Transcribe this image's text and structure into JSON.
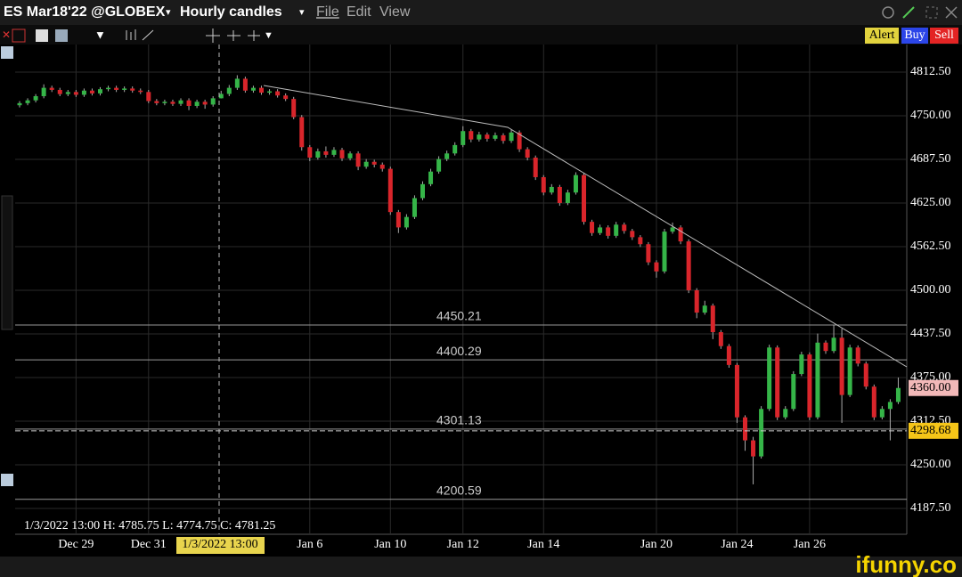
{
  "header": {
    "title": "ES Mar18'22 @GLOBEX",
    "timeframe": "Hourly candles",
    "menu": [
      "File",
      "Edit",
      "View"
    ]
  },
  "buttons": [
    "Alert",
    "Buy",
    "Sell"
  ],
  "crosshair": {
    "readout": "1/3/2022 13:00 H: 4785.75 L: 4774.75 C: 4781.25",
    "time_label": "1/3/2022 13:00"
  },
  "watermark": "ifunny.co",
  "chart_data": {
    "type": "candlestick",
    "up_color": "#35b548",
    "down_color": "#d9252b",
    "grid": true,
    "ylim": [
      4150.5,
      4852
    ],
    "yticks": [
      {
        "value": 4187.5,
        "label": "4187.50"
      },
      {
        "value": 4250,
        "label": "4250.00"
      },
      {
        "value": 4312.5,
        "label": "4312.50"
      },
      {
        "value": 4375,
        "label": "4375.00"
      },
      {
        "value": 4437.5,
        "label": "4437.50"
      },
      {
        "value": 4500,
        "label": "4500.00"
      },
      {
        "value": 4562.5,
        "label": "4562.50"
      },
      {
        "value": 4625,
        "label": "4625.00"
      },
      {
        "value": 4687.5,
        "label": "4687.50"
      },
      {
        "value": 4750,
        "label": "4750.00"
      },
      {
        "value": 4812.5,
        "label": "4812.50"
      }
    ],
    "levels": [
      {
        "value": 4450.21,
        "label": "4450.21"
      },
      {
        "value": 4400.29,
        "label": "4400.29"
      },
      {
        "value": 4301.13,
        "label": "4301.13"
      },
      {
        "value": 4200.59,
        "label": "4200.59"
      }
    ],
    "price_tags": [
      {
        "value": 4360,
        "label": "4360.00",
        "color": "#f2b8b8"
      },
      {
        "value": 4298.68,
        "label": "4298.68",
        "color": "#f5c518"
      }
    ],
    "categories": [
      null,
      null,
      null,
      null,
      null,
      null,
      null,
      "Dec 29",
      null,
      null,
      null,
      null,
      null,
      null,
      null,
      null,
      "Dec 31",
      null,
      null,
      null,
      null,
      null,
      null,
      null,
      null,
      null,
      null,
      null,
      null,
      null,
      null,
      null,
      null,
      null,
      null,
      null,
      "Jan 6",
      null,
      null,
      null,
      null,
      null,
      null,
      null,
      null,
      null,
      "Jan 10",
      null,
      null,
      null,
      null,
      null,
      null,
      null,
      null,
      "Jan 12",
      null,
      null,
      null,
      null,
      null,
      null,
      null,
      null,
      null,
      "Jan 14",
      null,
      null,
      null,
      null,
      null,
      null,
      null,
      null,
      null,
      null,
      null,
      null,
      null,
      "Jan 20",
      null,
      null,
      null,
      null,
      null,
      null,
      null,
      null,
      null,
      "Jan 24",
      null,
      null,
      null,
      null,
      null,
      null,
      null,
      null,
      "Jan 26",
      null,
      null,
      null,
      null,
      null,
      null,
      null,
      null,
      null,
      null,
      null
    ],
    "candles": [
      [
        4765,
        4771,
        4762,
        4768
      ],
      [
        4768,
        4775,
        4765,
        4772
      ],
      [
        4772,
        4781,
        4769,
        4778
      ],
      [
        4778,
        4795,
        4775,
        4790
      ],
      [
        4790,
        4793,
        4784,
        4787
      ],
      [
        4787,
        4790,
        4778,
        4781
      ],
      [
        4781,
        4787,
        4778,
        4784
      ],
      [
        4784,
        4787,
        4777,
        4780
      ],
      [
        4780,
        4789,
        4777,
        4786
      ],
      [
        4786,
        4789,
        4779,
        4782
      ],
      [
        4782,
        4791,
        4779,
        4788
      ],
      [
        4788,
        4793,
        4785,
        4790
      ],
      [
        4790,
        4793,
        4784,
        4787
      ],
      [
        4787,
        4792,
        4784,
        4789
      ],
      [
        4789,
        4792,
        4783,
        4786
      ],
      [
        4786,
        4789,
        4781,
        4784
      ],
      [
        4784,
        4787,
        4768,
        4771
      ],
      [
        4771,
        4774,
        4765,
        4768
      ],
      [
        4768,
        4773,
        4765,
        4770
      ],
      [
        4770,
        4773,
        4764,
        4767
      ],
      [
        4767,
        4775,
        4764,
        4772
      ],
      [
        4772,
        4775,
        4758,
        4764
      ],
      [
        4764,
        4773,
        4761,
        4770
      ],
      [
        4770,
        4773,
        4760,
        4766
      ],
      [
        4766,
        4778,
        4763,
        4775
      ],
      [
        4775,
        4785.75,
        4774.75,
        4781.25
      ],
      [
        4781.25,
        4794,
        4778,
        4790
      ],
      [
        4790,
        4808,
        4787,
        4803
      ],
      [
        4803,
        4806,
        4783,
        4786
      ],
      [
        4786,
        4793,
        4783,
        4790
      ],
      [
        4790,
        4793,
        4780,
        4783
      ],
      [
        4783,
        4788,
        4780,
        4785
      ],
      [
        4785,
        4788,
        4776,
        4779
      ],
      [
        4779,
        4782,
        4771,
        4774
      ],
      [
        4774,
        4777,
        4745,
        4748
      ],
      [
        4748,
        4751,
        4700,
        4705
      ],
      [
        4705,
        4708,
        4685,
        4690
      ],
      [
        4690,
        4703,
        4687,
        4699
      ],
      [
        4699,
        4706,
        4690,
        4694
      ],
      [
        4694,
        4705,
        4691,
        4701
      ],
      [
        4701,
        4704,
        4685,
        4689
      ],
      [
        4689,
        4699,
        4686,
        4696
      ],
      [
        4696,
        4699,
        4672,
        4677
      ],
      [
        4677,
        4688,
        4674,
        4684
      ],
      [
        4684,
        4687,
        4676,
        4680
      ],
      [
        4680,
        4683,
        4670,
        4674
      ],
      [
        4674,
        4677,
        4608,
        4612
      ],
      [
        4612,
        4615,
        4582,
        4590
      ],
      [
        4590,
        4609,
        4587,
        4605
      ],
      [
        4605,
        4636,
        4602,
        4632
      ],
      [
        4632,
        4656,
        4629,
        4652
      ],
      [
        4652,
        4674,
        4649,
        4670
      ],
      [
        4670,
        4692,
        4667,
        4688
      ],
      [
        4688,
        4700,
        4685,
        4696
      ],
      [
        4696,
        4712,
        4693,
        4708
      ],
      [
        4708,
        4735,
        4705,
        4728
      ],
      [
        4728,
        4731,
        4712,
        4716
      ],
      [
        4716,
        4727,
        4713,
        4723
      ],
      [
        4723,
        4726,
        4713,
        4717
      ],
      [
        4717,
        4726,
        4714,
        4722
      ],
      [
        4722,
        4725,
        4710,
        4714
      ],
      [
        4714,
        4730,
        4711,
        4726
      ],
      [
        4726,
        4729,
        4698,
        4702
      ],
      [
        4702,
        4705,
        4686,
        4690
      ],
      [
        4690,
        4693,
        4658,
        4662
      ],
      [
        4662,
        4665,
        4636,
        4640
      ],
      [
        4640,
        4652,
        4637,
        4648
      ],
      [
        4648,
        4651,
        4621,
        4625
      ],
      [
        4625,
        4644,
        4622,
        4640
      ],
      [
        4640,
        4669,
        4637,
        4665
      ],
      [
        4665,
        4668,
        4594,
        4598
      ],
      [
        4598,
        4601,
        4578,
        4582
      ],
      [
        4582,
        4594,
        4579,
        4590
      ],
      [
        4590,
        4593,
        4574,
        4578
      ],
      [
        4578,
        4598,
        4575,
        4594
      ],
      [
        4594,
        4597,
        4581,
        4585
      ],
      [
        4585,
        4588,
        4572,
        4576
      ],
      [
        4576,
        4579,
        4562,
        4566
      ],
      [
        4566,
        4569,
        4536,
        4540
      ],
      [
        4540,
        4543,
        4518,
        4527
      ],
      [
        4527,
        4588,
        4524,
        4584
      ],
      [
        4584,
        4597,
        4581,
        4590
      ],
      [
        4590,
        4593,
        4566,
        4570
      ],
      [
        4570,
        4573,
        4496,
        4500
      ],
      [
        4500,
        4503,
        4460,
        4468
      ],
      [
        4468,
        4485,
        4465,
        4478
      ],
      [
        4478,
        4481,
        4430,
        4440
      ],
      [
        4440,
        4443,
        4416,
        4420
      ],
      [
        4420,
        4423,
        4389,
        4393
      ],
      [
        4393,
        4396,
        4310,
        4318
      ],
      [
        4318,
        4321,
        4270,
        4285
      ],
      [
        4285,
        4290,
        4222,
        4262
      ],
      [
        4262,
        4334,
        4259,
        4330
      ],
      [
        4330,
        4422,
        4327,
        4418
      ],
      [
        4418,
        4421,
        4314,
        4318
      ],
      [
        4318,
        4334,
        4315,
        4330
      ],
      [
        4330,
        4384,
        4327,
        4380
      ],
      [
        4380,
        4412,
        4377,
        4408
      ],
      [
        4408,
        4411,
        4314,
        4318
      ],
      [
        4318,
        4438,
        4315,
        4425
      ],
      [
        4425,
        4428,
        4409,
        4413
      ],
      [
        4413,
        4450,
        4410,
        4432
      ],
      [
        4432,
        4445,
        4310,
        4350
      ],
      [
        4350,
        4422,
        4347,
        4418
      ],
      [
        4418,
        4421,
        4391,
        4395
      ],
      [
        4395,
        4398,
        4358,
        4362
      ],
      [
        4362,
        4365,
        4314,
        4318
      ],
      [
        4318,
        4334,
        4315,
        4330
      ],
      [
        4330,
        4344,
        4285,
        4340
      ],
      [
        4340,
        4375,
        4337,
        4360
      ]
    ]
  }
}
